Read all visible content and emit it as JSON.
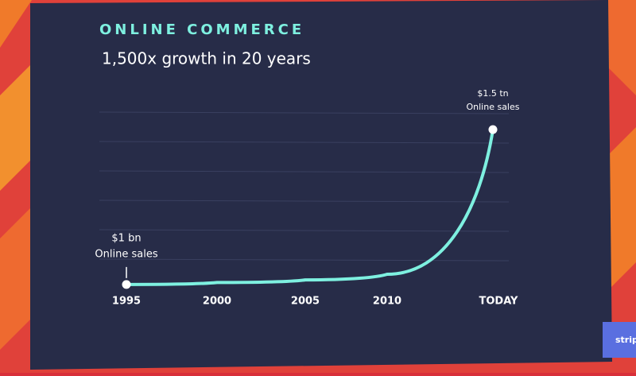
{
  "chart_data": {
    "type": "line",
    "title": "ONLINE COMMERCE",
    "subtitle": "1,500x growth in 20 years",
    "categories": [
      "1995",
      "2000",
      "2005",
      "2010",
      "TODAY"
    ],
    "values": [
      1,
      20,
      45,
      100,
      1500
    ],
    "value_labels": [
      "$1 bn",
      null,
      null,
      null,
      "$1.5 tn"
    ],
    "annotations": [
      "Online sales",
      null,
      null,
      null,
      "Online sales"
    ],
    "color": "#7ef0e0",
    "ylim": [
      0,
      1500
    ],
    "logo": "strip"
  }
}
